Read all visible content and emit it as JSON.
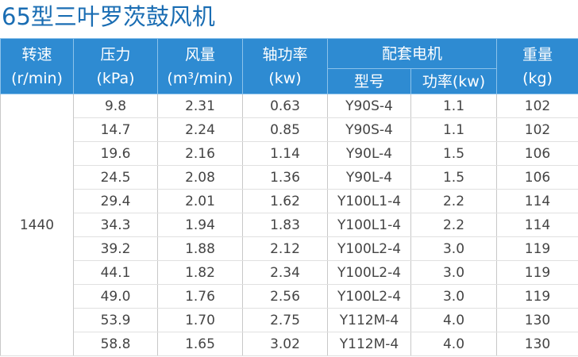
{
  "header": {
    "title": "65型三叶罗茨鼓风机"
  },
  "table": {
    "columns": [
      {
        "name": "转速",
        "unit": "(r/min)"
      },
      {
        "name": "压力",
        "unit": "(kPa)"
      },
      {
        "name": "风量",
        "unit": "(m³/min)"
      },
      {
        "name": "轴功率",
        "unit": "(kw)"
      },
      {
        "name": "重量",
        "unit": "(kg)"
      }
    ],
    "motor": {
      "name": "配套电机",
      "sub": [
        "型号",
        "功率(kw)"
      ]
    },
    "speed": "1440",
    "rows": [
      [
        "9.8",
        "2.31",
        "0.63",
        "Y90S-4",
        "1.1",
        "102"
      ],
      [
        "14.7",
        "2.24",
        "0.85",
        "Y90S-4",
        "1.1",
        "102"
      ],
      [
        "19.6",
        "2.16",
        "1.14",
        "Y90L-4",
        "1.5",
        "106"
      ],
      [
        "24.5",
        "2.08",
        "1.36",
        "Y90L-4",
        "1.5",
        "106"
      ],
      [
        "29.4",
        "2.01",
        "1.62",
        "Y100L1-4",
        "2.2",
        "114"
      ],
      [
        "34.3",
        "1.94",
        "1.83",
        "Y100L1-4",
        "2.2",
        "114"
      ],
      [
        "39.2",
        "1.88",
        "2.12",
        "Y100L2-4",
        "3.0",
        "119"
      ],
      [
        "44.1",
        "1.82",
        "2.34",
        "Y100L2-4",
        "3.0",
        "119"
      ],
      [
        "49.0",
        "1.76",
        "2.56",
        "Y100L2-4",
        "3.0",
        "119"
      ],
      [
        "53.9",
        "1.70",
        "2.75",
        "Y112M-4",
        "4.0",
        "130"
      ],
      [
        "58.8",
        "1.65",
        "3.02",
        "Y112M-4",
        "4.0",
        "130"
      ]
    ]
  }
}
